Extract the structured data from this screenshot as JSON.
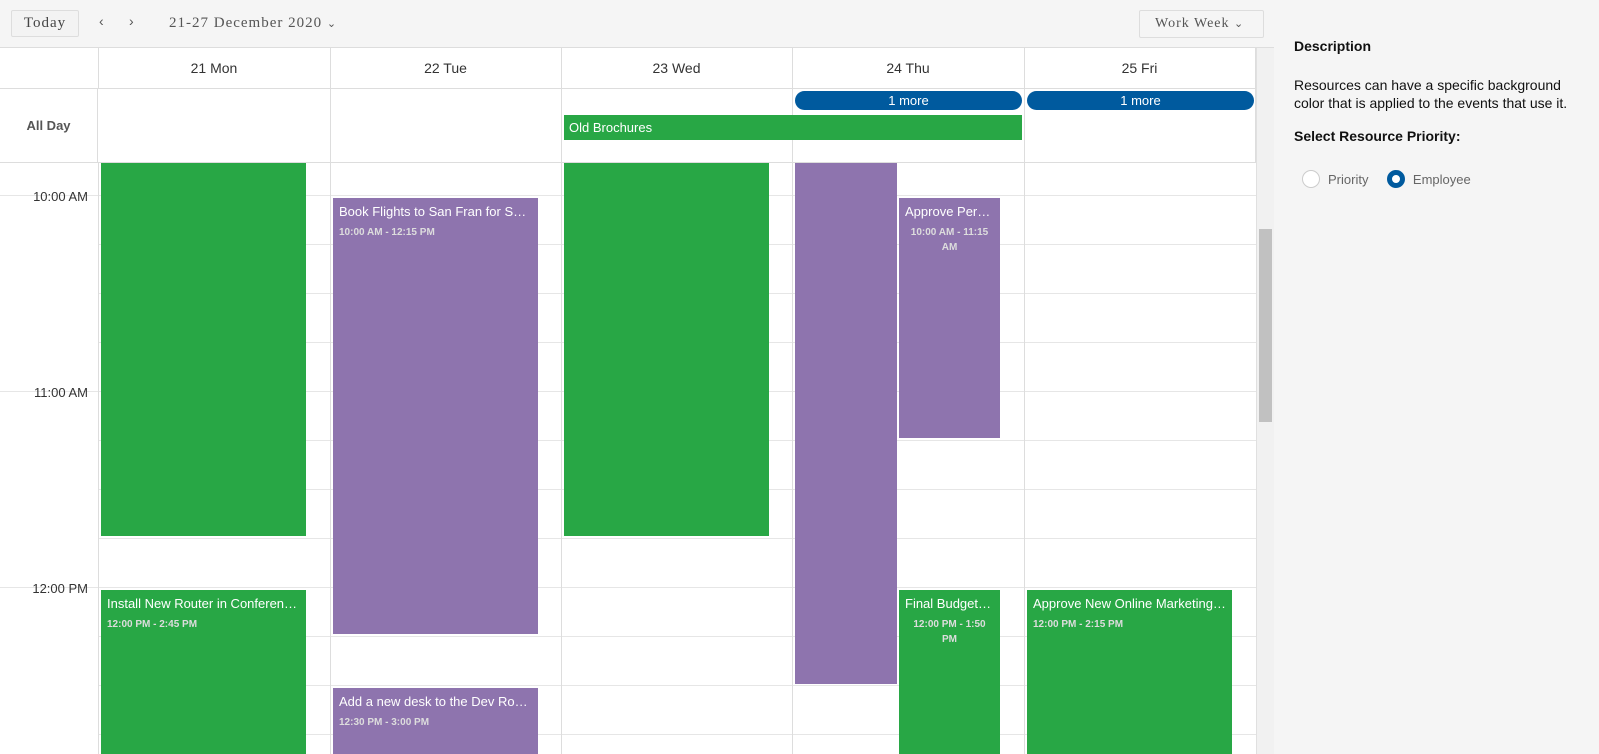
{
  "toolbar": {
    "today": "Today",
    "prev": "‹",
    "next": "›",
    "date_range": "21-27 December 2020",
    "date_chevron": "⌄",
    "view": "Work Week",
    "view_chevron": "⌄"
  },
  "days": [
    "21 Mon",
    "22 Tue",
    "23 Wed",
    "24 Thu",
    "25 Fri"
  ],
  "all_day_label": "All Day",
  "all_day_events": {
    "old_brochures": "Old Brochures",
    "more_thu": "1 more",
    "more_fri": "1 more"
  },
  "times": [
    "10:00 AM",
    "11:00 AM",
    "12:00 PM"
  ],
  "events": {
    "router": {
      "title": "Install New Router in Conference Room",
      "time": "12:00 PM - 2:45 PM"
    },
    "flights": {
      "title": "Book Flights to San Fran for Sales Trip",
      "time": "10:00 AM - 12:15 PM"
    },
    "desk": {
      "title": "Add a new desk to the Dev Room",
      "time": "12:30 PM - 3:00 PM"
    },
    "approve_per": {
      "title": "Approve Personal Computer Upgrade Plan",
      "time": "10:00 AM - 11:15 AM"
    },
    "budget": {
      "title": "Final Budget Review",
      "time": "12:00 PM - 1:50 PM"
    },
    "marketing": {
      "title": "Approve New Online Marketing Strategy",
      "time": "12:00 PM - 2:15 PM"
    }
  },
  "colors": {
    "green": "#28a745",
    "purple": "#8e74ae",
    "accent": "#005a9e"
  },
  "side": {
    "heading": "Description",
    "text": "Resources can have a specific background color that is applied to the events that use it.",
    "select_label": "Select Resource Priority:",
    "options": [
      "Priority",
      "Employee"
    ],
    "selected": "Employee"
  }
}
